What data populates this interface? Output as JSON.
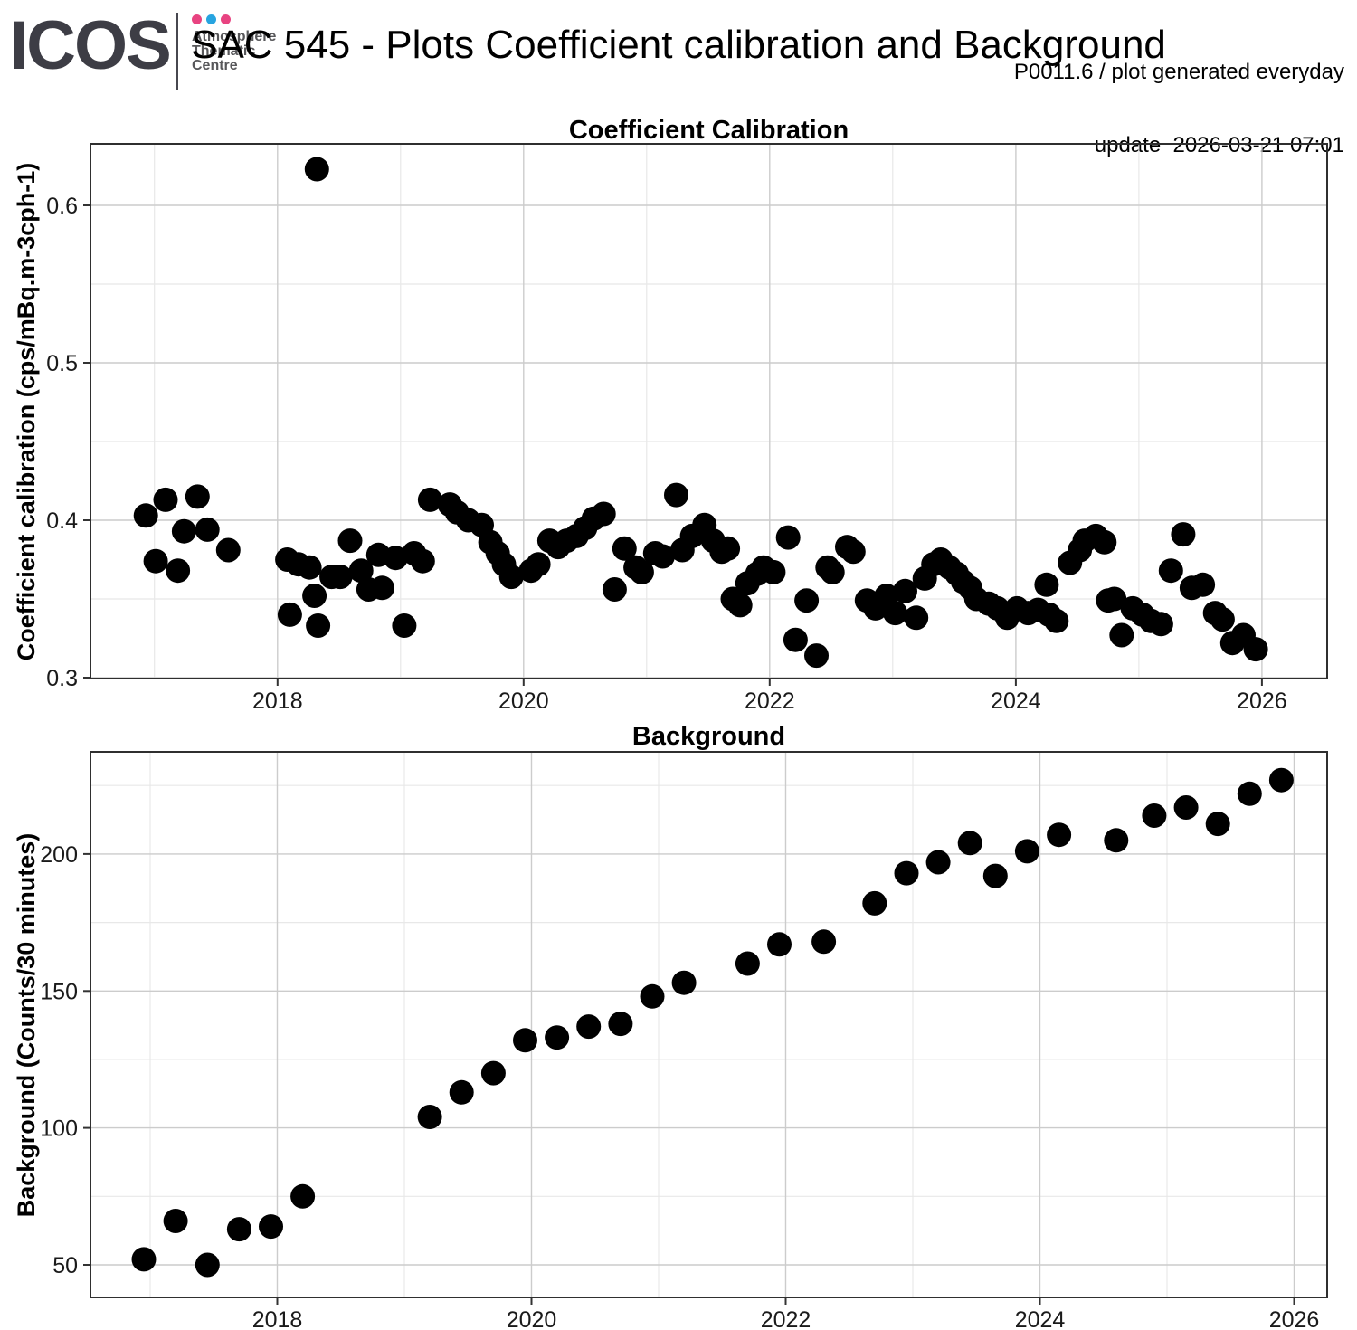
{
  "header": {
    "logo_text": "ICOS",
    "logo_subtext_lines": [
      "Atmosphere",
      "Thematic",
      "Centre"
    ],
    "logo_dot_colors": [
      "#e84381",
      "#27a4e0",
      "#e84381"
    ],
    "title": "SAC 545 - Plots Coefficient calibration and Background",
    "info_line1": "P0011.6 / plot generated everyday",
    "info_line2": "update  2026-03-21 07:01"
  },
  "colors": {
    "point": "#000000",
    "grid_major": "#cccccc",
    "grid_minor": "#e8e8e8",
    "panel_border": "#2f2f2f",
    "tick": "#333333",
    "tick_label": "#1a1a1a"
  },
  "chart_data": [
    {
      "type": "scatter",
      "title": "Coefficient Calibration",
      "xlabel": "",
      "ylabel": "Coefficient calibration (cps/mBq.m-3cph-1)",
      "xlim": [
        2016.48,
        2026.53
      ],
      "ylim": [
        0.2994,
        0.6391
      ],
      "x_major_ticks": [
        2018,
        2020,
        2022,
        2024,
        2026
      ],
      "x_tick_labels": [
        "2018",
        "2020",
        "2022",
        "2024",
        "2026"
      ],
      "x_minor_ticks": [
        2017,
        2019,
        2021,
        2023,
        2025
      ],
      "y_major_ticks": [
        0.3,
        0.4,
        0.5,
        0.6
      ],
      "y_tick_labels": [
        "0.3",
        "0.4",
        "0.5",
        "0.6"
      ],
      "y_minor_ticks": [
        0.35,
        0.45,
        0.55
      ],
      "grid": true,
      "legend": null,
      "points": [
        [
          2016.93,
          0.403
        ],
        [
          2017.01,
          0.374
        ],
        [
          2017.09,
          0.413
        ],
        [
          2017.19,
          0.368
        ],
        [
          2017.24,
          0.393
        ],
        [
          2017.35,
          0.415
        ],
        [
          2017.43,
          0.394
        ],
        [
          2017.6,
          0.381
        ],
        [
          2018.08,
          0.375
        ],
        [
          2018.1,
          0.34
        ],
        [
          2018.17,
          0.372
        ],
        [
          2018.26,
          0.37
        ],
        [
          2018.3,
          0.352
        ],
        [
          2018.32,
          0.623
        ],
        [
          2018.33,
          0.333
        ],
        [
          2018.44,
          0.364
        ],
        [
          2018.51,
          0.364
        ],
        [
          2018.59,
          0.387
        ],
        [
          2018.68,
          0.368
        ],
        [
          2018.74,
          0.356
        ],
        [
          2018.82,
          0.378
        ],
        [
          2018.85,
          0.357
        ],
        [
          2018.96,
          0.376
        ],
        [
          2019.03,
          0.333
        ],
        [
          2019.11,
          0.379
        ],
        [
          2019.18,
          0.374
        ],
        [
          2019.24,
          0.413
        ],
        [
          2019.4,
          0.41
        ],
        [
          2019.46,
          0.405
        ],
        [
          2019.55,
          0.4
        ],
        [
          2019.66,
          0.397
        ],
        [
          2019.73,
          0.386
        ],
        [
          2019.79,
          0.379
        ],
        [
          2019.84,
          0.372
        ],
        [
          2019.9,
          0.364
        ],
        [
          2020.06,
          0.368
        ],
        [
          2020.12,
          0.372
        ],
        [
          2020.21,
          0.387
        ],
        [
          2020.28,
          0.383
        ],
        [
          2020.35,
          0.387
        ],
        [
          2020.43,
          0.39
        ],
        [
          2020.5,
          0.395
        ],
        [
          2020.57,
          0.401
        ],
        [
          2020.65,
          0.404
        ],
        [
          2020.74,
          0.356
        ],
        [
          2020.82,
          0.382
        ],
        [
          2020.91,
          0.37
        ],
        [
          2020.96,
          0.367
        ],
        [
          2021.07,
          0.379
        ],
        [
          2021.13,
          0.377
        ],
        [
          2021.24,
          0.416
        ],
        [
          2021.29,
          0.381
        ],
        [
          2021.37,
          0.39
        ],
        [
          2021.47,
          0.397
        ],
        [
          2021.54,
          0.387
        ],
        [
          2021.61,
          0.38
        ],
        [
          2021.66,
          0.382
        ],
        [
          2021.7,
          0.35
        ],
        [
          2021.76,
          0.346
        ],
        [
          2021.82,
          0.36
        ],
        [
          2021.9,
          0.366
        ],
        [
          2021.95,
          0.37
        ],
        [
          2022.03,
          0.367
        ],
        [
          2022.15,
          0.389
        ],
        [
          2022.21,
          0.324
        ],
        [
          2022.3,
          0.349
        ],
        [
          2022.38,
          0.314
        ],
        [
          2022.47,
          0.37
        ],
        [
          2022.51,
          0.367
        ],
        [
          2022.63,
          0.383
        ],
        [
          2022.68,
          0.38
        ],
        [
          2022.79,
          0.349
        ],
        [
          2022.86,
          0.344
        ],
        [
          2022.95,
          0.352
        ],
        [
          2023.02,
          0.341
        ],
        [
          2023.1,
          0.355
        ],
        [
          2023.19,
          0.338
        ],
        [
          2023.26,
          0.363
        ],
        [
          2023.33,
          0.372
        ],
        [
          2023.39,
          0.375
        ],
        [
          2023.46,
          0.37
        ],
        [
          2023.52,
          0.366
        ],
        [
          2023.57,
          0.361
        ],
        [
          2023.63,
          0.357
        ],
        [
          2023.68,
          0.35
        ],
        [
          2023.78,
          0.347
        ],
        [
          2023.85,
          0.344
        ],
        [
          2023.93,
          0.338
        ],
        [
          2024.01,
          0.344
        ],
        [
          2024.1,
          0.341
        ],
        [
          2024.18,
          0.343
        ],
        [
          2024.25,
          0.359
        ],
        [
          2024.27,
          0.34
        ],
        [
          2024.33,
          0.336
        ],
        [
          2024.44,
          0.373
        ],
        [
          2024.52,
          0.381
        ],
        [
          2024.56,
          0.387
        ],
        [
          2024.65,
          0.39
        ],
        [
          2024.72,
          0.386
        ],
        [
          2024.75,
          0.349
        ],
        [
          2024.8,
          0.35
        ],
        [
          2024.86,
          0.327
        ],
        [
          2024.95,
          0.344
        ],
        [
          2025.03,
          0.34
        ],
        [
          2025.1,
          0.336
        ],
        [
          2025.18,
          0.334
        ],
        [
          2025.26,
          0.368
        ],
        [
          2025.36,
          0.391
        ],
        [
          2025.43,
          0.357
        ],
        [
          2025.52,
          0.359
        ],
        [
          2025.62,
          0.341
        ],
        [
          2025.68,
          0.337
        ],
        [
          2025.76,
          0.322
        ],
        [
          2025.85,
          0.327
        ],
        [
          2025.95,
          0.318
        ]
      ]
    },
    {
      "type": "scatter",
      "title": "Background",
      "xlabel": "",
      "ylabel": "Background (Counts/30 minutes)",
      "xlim": [
        2016.53,
        2026.26
      ],
      "ylim": [
        38.1,
        237.3
      ],
      "x_major_ticks": [
        2018,
        2020,
        2022,
        2024,
        2026
      ],
      "x_tick_labels": [
        "2018",
        "2020",
        "2022",
        "2024",
        "2026"
      ],
      "x_minor_ticks": [
        2017,
        2019,
        2021,
        2023,
        2025
      ],
      "y_major_ticks": [
        50,
        100,
        150,
        200
      ],
      "y_tick_labels": [
        "50",
        "100",
        "150",
        "200"
      ],
      "y_minor_ticks": [
        75,
        125,
        175,
        225
      ],
      "grid": true,
      "legend": null,
      "points": [
        [
          2016.95,
          52
        ],
        [
          2017.2,
          66
        ],
        [
          2017.45,
          50
        ],
        [
          2017.7,
          63
        ],
        [
          2017.95,
          64
        ],
        [
          2018.2,
          75
        ],
        [
          2019.2,
          104
        ],
        [
          2019.45,
          113
        ],
        [
          2019.7,
          120
        ],
        [
          2019.95,
          132
        ],
        [
          2020.2,
          133
        ],
        [
          2020.45,
          137
        ],
        [
          2020.7,
          138
        ],
        [
          2020.95,
          148
        ],
        [
          2021.2,
          153
        ],
        [
          2021.7,
          160
        ],
        [
          2021.95,
          167
        ],
        [
          2022.3,
          168
        ],
        [
          2022.7,
          182
        ],
        [
          2022.95,
          193
        ],
        [
          2023.2,
          197
        ],
        [
          2023.45,
          204
        ],
        [
          2023.65,
          192
        ],
        [
          2023.9,
          201
        ],
        [
          2024.15,
          207
        ],
        [
          2024.6,
          205
        ],
        [
          2024.9,
          214
        ],
        [
          2025.15,
          217
        ],
        [
          2025.4,
          211
        ],
        [
          2025.65,
          222
        ],
        [
          2025.9,
          227
        ]
      ]
    }
  ]
}
